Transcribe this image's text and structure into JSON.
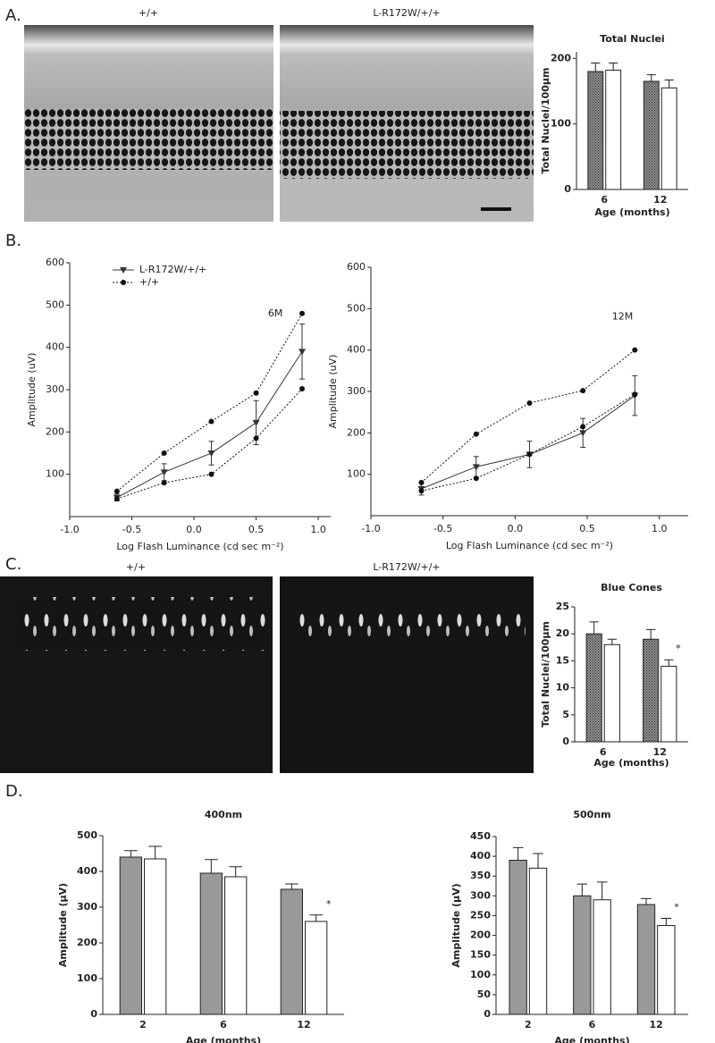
{
  "panels": [
    {
      "label": "A.",
      "image_labels": [
        "+/+",
        "L-R172W/+/+"
      ]
    },
    {
      "label": "B."
    },
    {
      "label": "C.",
      "image_labels": [
        "+/+",
        "L-R172W/+/+"
      ]
    },
    {
      "label": "D."
    }
  ],
  "chart_data": [
    {
      "type": "bar",
      "title": "Total Nuclei",
      "y_label": "Total Nuclei/100μm",
      "x_label": "Age (months)",
      "categories": [
        "6",
        "12"
      ],
      "series": [
        {
          "color": "#8c8c8c",
          "hatch": true,
          "values": [
            180,
            165
          ],
          "errors": [
            13,
            10
          ]
        },
        {
          "color": "#ffffff",
          "values": [
            182,
            155
          ],
          "errors": [
            11,
            12
          ]
        }
      ],
      "ylim": [
        0,
        210
      ],
      "yticks": [
        0,
        100,
        200
      ]
    },
    {
      "type": "line",
      "annotation": "6M",
      "x_label": "Log Flash Luminance (cd sec m⁻²)",
      "y_label": "Amplitude (uV)",
      "x": [
        -0.62,
        -0.24,
        0.14,
        0.5,
        0.87
      ],
      "series": [
        {
          "name": "L-R172W/+/+",
          "color": "#333333",
          "marker": "triangle",
          "dash": false,
          "values": [
            45,
            105,
            150,
            222,
            390
          ],
          "errors": [
            8,
            20,
            28,
            52,
            65
          ]
        },
        {
          "name": "+/+",
          "color": "#111111",
          "marker": "circle",
          "dash": true,
          "values": [
            60,
            150,
            225,
            292,
            480
          ]
        },
        {
          "color": "#111111",
          "marker": "circle",
          "dash": true,
          "values": [
            42,
            80,
            100,
            185,
            302
          ]
        }
      ],
      "xlim": [
        -1.0,
        1.1
      ],
      "xticks": [
        {
          "value": -1,
          "label": "-1.0"
        },
        -0.5,
        {
          "value": 0,
          "label": "0.0"
        },
        0.5,
        {
          "value": 1,
          "label": "1.0"
        }
      ],
      "ylim": [
        0,
        600
      ],
      "yticks": [
        100,
        200,
        300,
        400,
        500,
        600
      ],
      "legend": "upper left"
    },
    {
      "type": "line",
      "annotation": "12M",
      "x_label": "Log Flash Luminance (cd sec m⁻²)",
      "y_label": "Amplitude (uV)",
      "x": [
        -0.65,
        -0.27,
        0.1,
        0.47,
        0.83
      ],
      "series": [
        {
          "name": "L-R172W/+/+",
          "color": "#333333",
          "marker": "triangle",
          "dash": false,
          "values": [
            65,
            118,
            148,
            200,
            290
          ],
          "errors": [
            15,
            25,
            32,
            35,
            48
          ]
        },
        {
          "name": "+/+",
          "color": "#111111",
          "marker": "circle",
          "dash": true,
          "values": [
            80,
            197,
            272,
            302,
            400
          ]
        },
        {
          "color": "#111111",
          "marker": "circle",
          "dash": true,
          "values": [
            60,
            90,
            148,
            215,
            293
          ]
        }
      ],
      "xlim": [
        -1.0,
        1.2
      ],
      "xticks": [
        {
          "value": -1,
          "label": "-1.0"
        },
        -0.5,
        {
          "value": 0,
          "label": "0.0"
        },
        0.5,
        {
          "value": 1,
          "label": "1.0"
        }
      ],
      "ylim": [
        0,
        600
      ],
      "yticks": [
        100,
        200,
        300,
        400,
        500,
        600
      ]
    },
    {
      "type": "bar",
      "title": "Blue Cones",
      "y_label": "Total Nuclei/100μm",
      "x_label": "Age (months)",
      "annotation": "*",
      "categories": [
        "6",
        "12"
      ],
      "series": [
        {
          "color": "#8c8c8c",
          "hatch": true,
          "values": [
            20,
            19
          ],
          "errors": [
            2.2,
            1.8
          ]
        },
        {
          "color": "#ffffff",
          "values": [
            18,
            14
          ],
          "errors": [
            1,
            1.2
          ]
        }
      ],
      "ylim": [
        0,
        25
      ],
      "yticks": [
        0,
        5,
        10,
        15,
        20,
        25
      ]
    },
    {
      "type": "bar",
      "title": "400nm",
      "y_label": "Amplitude (μV)",
      "x_label": "Age (months)",
      "annotation": "*",
      "categories": [
        "2",
        "6",
        "12"
      ],
      "series": [
        {
          "color": "#999999",
          "values": [
            440,
            395,
            350
          ],
          "errors": [
            18,
            38,
            15
          ]
        },
        {
          "color": "#ffffff",
          "values": [
            435,
            385,
            260
          ],
          "errors": [
            35,
            28,
            18
          ]
        }
      ],
      "ylim": [
        0,
        500
      ],
      "yticks": [
        0,
        100,
        200,
        300,
        400,
        500
      ]
    },
    {
      "type": "bar",
      "title": "500nm",
      "y_label": "Amplitude (μV)",
      "x_label": "Age (months)",
      "annotation": "*",
      "categories": [
        "2",
        "6",
        "12"
      ],
      "series": [
        {
          "color": "#999999",
          "values": [
            390,
            300,
            278
          ],
          "errors": [
            32,
            30,
            15
          ]
        },
        {
          "color": "#ffffff",
          "values": [
            370,
            290,
            225
          ],
          "errors": [
            37,
            45,
            18
          ]
        }
      ],
      "ylim": [
        0,
        450
      ],
      "yticks": [
        0,
        50,
        100,
        150,
        200,
        250,
        300,
        350,
        400,
        450
      ]
    }
  ]
}
